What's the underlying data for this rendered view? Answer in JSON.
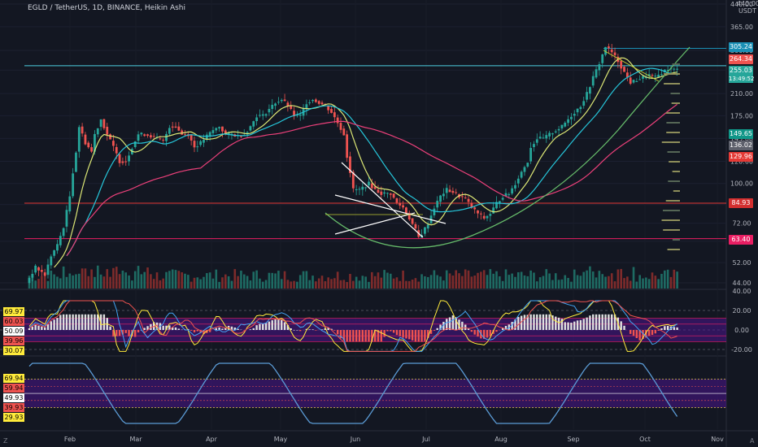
{
  "header": {
    "title": "EGLD / TetherUS, 1D, BINANCE, Heikin Ashi",
    "currency_top": "440.00",
    "currency": "USDT"
  },
  "price_tags": [
    {
      "value": "305.24",
      "color": "#1a8fb5",
      "text_color": "#ffffff"
    },
    {
      "value": "264.34",
      "color": "#ef5350",
      "text_color": "#ffffff"
    },
    {
      "value": "255.03",
      "color": "#26a69a",
      "text_color": "#ffffff",
      "sub": "13:49:52"
    },
    {
      "value": "149.65",
      "color": "#0f9688",
      "text_color": "#ffffff"
    },
    {
      "value": "136.02",
      "color": "#5d606b",
      "text_color": "#ffffff"
    },
    {
      "value": "129.96",
      "color": "#e53935",
      "text_color": "#ffffff"
    },
    {
      "value": "84.93",
      "color": "#d32f2f",
      "text_color": "#ffffff"
    },
    {
      "value": "63.40",
      "color": "#e91e63",
      "text_color": "#ffffff"
    }
  ],
  "pane1_tags": [
    {
      "value": "69.97",
      "color": "#ffeb3b"
    },
    {
      "value": "60.03",
      "color": "#ef5350"
    },
    {
      "value": "50.09",
      "color": "#ffffff"
    },
    {
      "value": "39.96",
      "color": "#ef5350"
    },
    {
      "value": "30.07",
      "color": "#ffeb3b"
    }
  ],
  "pane2_tags": [
    {
      "value": "69.94",
      "color": "#ffeb3b"
    },
    {
      "value": "59.94",
      "color": "#ef5350"
    },
    {
      "value": "49.93",
      "color": "#ffffff"
    },
    {
      "value": "39.93",
      "color": "#ef5350"
    },
    {
      "value": "29.93",
      "color": "#ffeb3b"
    }
  ],
  "corner_buttons": {
    "left": "Z",
    "right": "A"
  },
  "chart_data": {
    "type": "candlestick",
    "title": "EGLD / TetherUS, 1D, BINANCE, Heikin Ashi",
    "x_axis": {
      "labels": [
        "Feb",
        "Mar",
        "Apr",
        "May",
        "Jun",
        "Jul",
        "Aug",
        "Sep",
        "Oct",
        "Nov"
      ]
    },
    "y_axis": {
      "scale": "log",
      "ticks": [
        440,
        365,
        300,
        255,
        210,
        175,
        145,
        120,
        100,
        84,
        72,
        62,
        52,
        44
      ],
      "unit": "USDT"
    },
    "series": [
      {
        "name": "price",
        "points": [
          [
            0,
            44
          ],
          [
            3,
            50
          ],
          [
            6,
            47
          ],
          [
            8,
            55
          ],
          [
            10,
            60
          ],
          [
            12,
            70
          ],
          [
            14,
            90
          ],
          [
            15,
            110
          ],
          [
            16,
            130
          ],
          [
            17,
            160
          ],
          [
            19,
            140
          ],
          [
            21,
            130
          ],
          [
            22,
            150
          ],
          [
            24,
            170
          ],
          [
            26,
            150
          ],
          [
            28,
            135
          ],
          [
            30,
            120
          ],
          [
            32,
            120
          ],
          [
            34,
            135
          ],
          [
            36,
            150
          ],
          [
            38,
            150
          ],
          [
            40,
            148
          ],
          [
            42,
            145
          ],
          [
            44,
            142
          ],
          [
            46,
            160
          ],
          [
            48,
            160
          ],
          [
            50,
            150
          ],
          [
            52,
            150
          ],
          [
            54,
            135
          ],
          [
            56,
            140
          ],
          [
            58,
            148
          ],
          [
            60,
            155
          ],
          [
            62,
            160
          ],
          [
            64,
            150
          ],
          [
            66,
            150
          ],
          [
            68,
            148
          ],
          [
            70,
            150
          ],
          [
            72,
            160
          ],
          [
            74,
            175
          ],
          [
            76,
            175
          ],
          [
            78,
            185
          ],
          [
            80,
            195
          ],
          [
            82,
            200
          ],
          [
            84,
            190
          ],
          [
            86,
            175
          ],
          [
            88,
            175
          ],
          [
            90,
            195
          ],
          [
            92,
            200
          ],
          [
            94,
            195
          ],
          [
            96,
            190
          ],
          [
            98,
            180
          ],
          [
            100,
            165
          ],
          [
            102,
            150
          ],
          [
            103,
            125
          ],
          [
            104,
            110
          ],
          [
            105,
            95
          ],
          [
            107,
            95
          ],
          [
            110,
            100
          ],
          [
            112,
            95
          ],
          [
            114,
            92
          ],
          [
            117,
            92
          ],
          [
            119,
            85
          ],
          [
            121,
            82
          ],
          [
            123,
            75
          ],
          [
            125,
            68
          ],
          [
            126,
            64
          ],
          [
            127,
            66
          ],
          [
            129,
            72
          ],
          [
            131,
            82
          ],
          [
            133,
            90
          ],
          [
            135,
            95
          ],
          [
            137,
            93
          ],
          [
            139,
            90
          ],
          [
            141,
            88
          ],
          [
            143,
            82
          ],
          [
            145,
            78
          ],
          [
            147,
            75
          ],
          [
            149,
            78
          ],
          [
            151,
            85
          ],
          [
            153,
            90
          ],
          [
            155,
            92
          ],
          [
            157,
            100
          ],
          [
            159,
            110
          ],
          [
            161,
            120
          ],
          [
            162,
            135
          ],
          [
            164,
            145
          ],
          [
            166,
            145
          ],
          [
            168,
            150
          ],
          [
            170,
            155
          ],
          [
            172,
            160
          ],
          [
            174,
            170
          ],
          [
            176,
            180
          ],
          [
            178,
            190
          ],
          [
            180,
            210
          ],
          [
            182,
            240
          ],
          [
            184,
            270
          ],
          [
            186,
            310
          ],
          [
            188,
            295
          ],
          [
            190,
            275
          ],
          [
            192,
            250
          ],
          [
            194,
            230
          ],
          [
            196,
            235
          ],
          [
            198,
            240
          ],
          [
            200,
            245
          ],
          [
            202,
            240
          ],
          [
            204,
            250
          ],
          [
            206,
            258
          ],
          [
            208,
            256
          ]
        ]
      },
      {
        "name": "ema_fast",
        "color": "#dce775"
      },
      {
        "name": "ema_mid",
        "color": "#26c6da"
      },
      {
        "name": "ema_slow",
        "color": "#ec407a"
      }
    ],
    "horizontal_lines": [
      {
        "value": 305.24,
        "color": "#1a8fb5"
      },
      {
        "value": 264.34,
        "color": "#4dd0e1"
      },
      {
        "value": 84.93,
        "color": "#e53935"
      },
      {
        "value": 63.4,
        "color": "#e91e63"
      }
    ],
    "pane1": {
      "name": "oscillator 1",
      "levels": [
        20,
        0,
        -20
      ],
      "tick_labels": [
        "40.00",
        "20.00",
        "0.00",
        "-20.00"
      ]
    },
    "pane2": {
      "name": "oscillator 2",
      "levels": [
        69.94,
        59.94,
        49.93,
        39.93,
        29.93
      ]
    }
  }
}
